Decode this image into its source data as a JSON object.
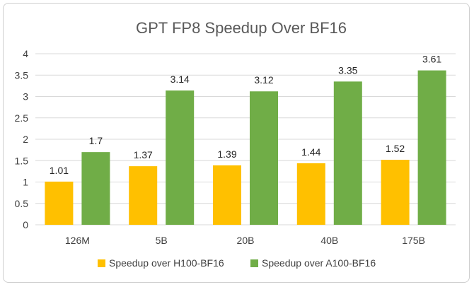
{
  "chart_data": {
    "type": "bar",
    "title": "GPT FP8 Speedup Over BF16",
    "categories": [
      "126M",
      "5B",
      "20B",
      "40B",
      "175B"
    ],
    "series": [
      {
        "name": "Speedup over H100-BF16",
        "color": "#FFC000",
        "values": [
          1.01,
          1.37,
          1.39,
          1.44,
          1.52
        ]
      },
      {
        "name": "Speedup over A100-BF16",
        "color": "#70AD47",
        "values": [
          1.7,
          3.14,
          3.12,
          3.35,
          3.61
        ]
      }
    ],
    "ylim": [
      0,
      4
    ],
    "yticks": [
      "0",
      "0.5",
      "1",
      "1.5",
      "2",
      "2.5",
      "3",
      "3.5",
      "4"
    ],
    "grid": true,
    "legend_position": "bottom"
  }
}
